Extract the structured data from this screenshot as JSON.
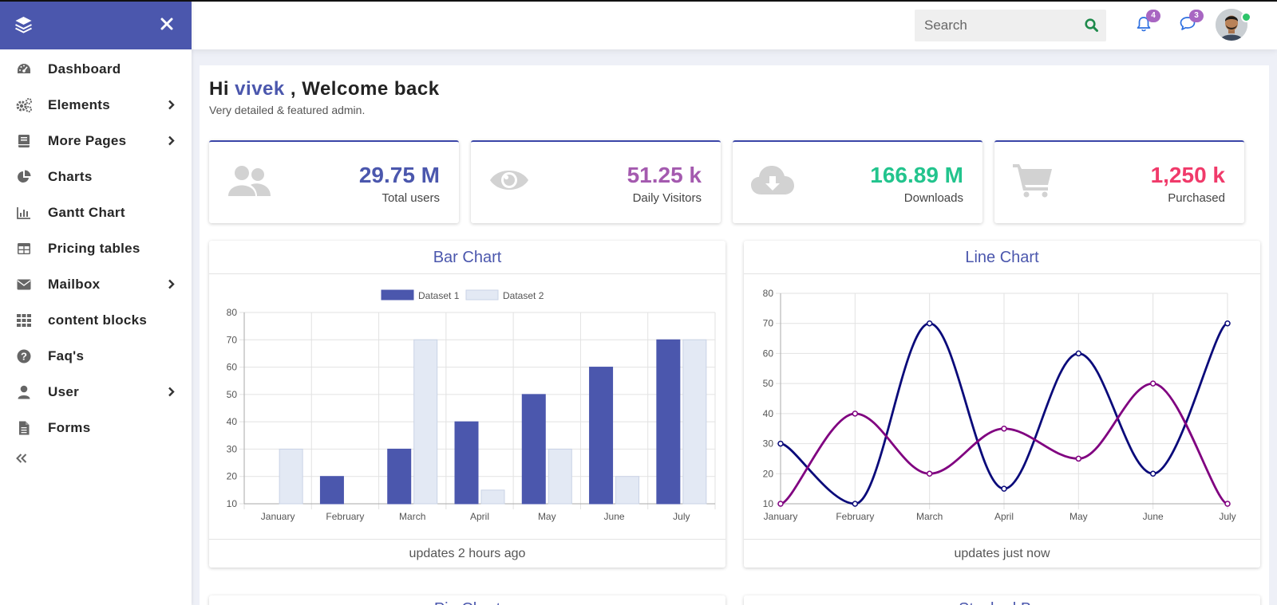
{
  "sidebar": {
    "items": [
      {
        "label": "Dashboard",
        "icon": "dashboard-icon",
        "has_submenu": false
      },
      {
        "label": "Elements",
        "icon": "cogs-icon",
        "has_submenu": true
      },
      {
        "label": "More Pages",
        "icon": "book-icon",
        "has_submenu": true
      },
      {
        "label": "Charts",
        "icon": "pie-chart-icon",
        "has_submenu": false
      },
      {
        "label": "Gantt Chart",
        "icon": "bar-chart-icon",
        "has_submenu": false
      },
      {
        "label": "Pricing tables",
        "icon": "table-icon",
        "has_submenu": false
      },
      {
        "label": "Mailbox",
        "icon": "envelope-icon",
        "has_submenu": true
      },
      {
        "label": "content blocks",
        "icon": "grid-icon",
        "has_submenu": false
      },
      {
        "label": "Faq's",
        "icon": "question-circle-icon",
        "has_submenu": false
      },
      {
        "label": "User",
        "icon": "user-icon",
        "has_submenu": true
      },
      {
        "label": "Forms",
        "icon": "file-text-icon",
        "has_submenu": false
      }
    ]
  },
  "header": {
    "search_placeholder": "Search",
    "notifications_count": "4",
    "messages_count": "3"
  },
  "welcome": {
    "prefix": "Hi",
    "username": "vivek",
    "suffix": ", Welcome back",
    "subtitle": "Very detailed & featured admin."
  },
  "stats": [
    {
      "value": "29.75 M",
      "label": "Total users",
      "color": "#4b57ad",
      "icon": "users-icon"
    },
    {
      "value": "51.25 k",
      "label": "Daily Visitors",
      "color": "#a45aaf",
      "icon": "eye-icon"
    },
    {
      "value": "166.89 M",
      "label": "Downloads",
      "color": "#22c48d",
      "icon": "cloud-download-icon"
    },
    {
      "value": "1,250 k",
      "label": "Purchased",
      "color": "#f03a6a",
      "icon": "shopping-cart-icon"
    }
  ],
  "cards": {
    "bar": {
      "title": "Bar Chart",
      "footer": "updates 2 hours ago"
    },
    "line": {
      "title": "Line Chart",
      "footer": "updates just now"
    },
    "pie": {
      "title": "Pie Chart"
    },
    "stacked": {
      "title": "Stacked Bar"
    }
  },
  "chart_data": [
    {
      "type": "bar",
      "title": "Bar Chart",
      "categories": [
        "January",
        "February",
        "March",
        "April",
        "May",
        "June",
        "July"
      ],
      "series": [
        {
          "name": "Dataset 1",
          "values": [
            10,
            20,
            30,
            40,
            50,
            60,
            70
          ],
          "color": "#4b57ad"
        },
        {
          "name": "Dataset 2",
          "values": [
            30,
            10,
            70,
            15,
            30,
            20,
            70
          ],
          "color": "#e3e9f4"
        }
      ],
      "ylim": [
        10,
        80
      ],
      "yticks": [
        10,
        20,
        30,
        40,
        50,
        60,
        70,
        80
      ],
      "grid": true,
      "legend": "top"
    },
    {
      "type": "line",
      "title": "Line Chart",
      "categories": [
        "January",
        "February",
        "March",
        "April",
        "May",
        "June",
        "July"
      ],
      "series": [
        {
          "values": [
            30,
            10,
            70,
            15,
            60,
            20,
            70
          ],
          "color": "#0a0a7a"
        },
        {
          "values": [
            10,
            40,
            20,
            35,
            25,
            50,
            10
          ],
          "color": "#800080"
        }
      ],
      "ylim": [
        10,
        80
      ],
      "yticks": [
        10,
        20,
        30,
        40,
        50,
        60,
        70,
        80
      ],
      "grid": true
    }
  ]
}
